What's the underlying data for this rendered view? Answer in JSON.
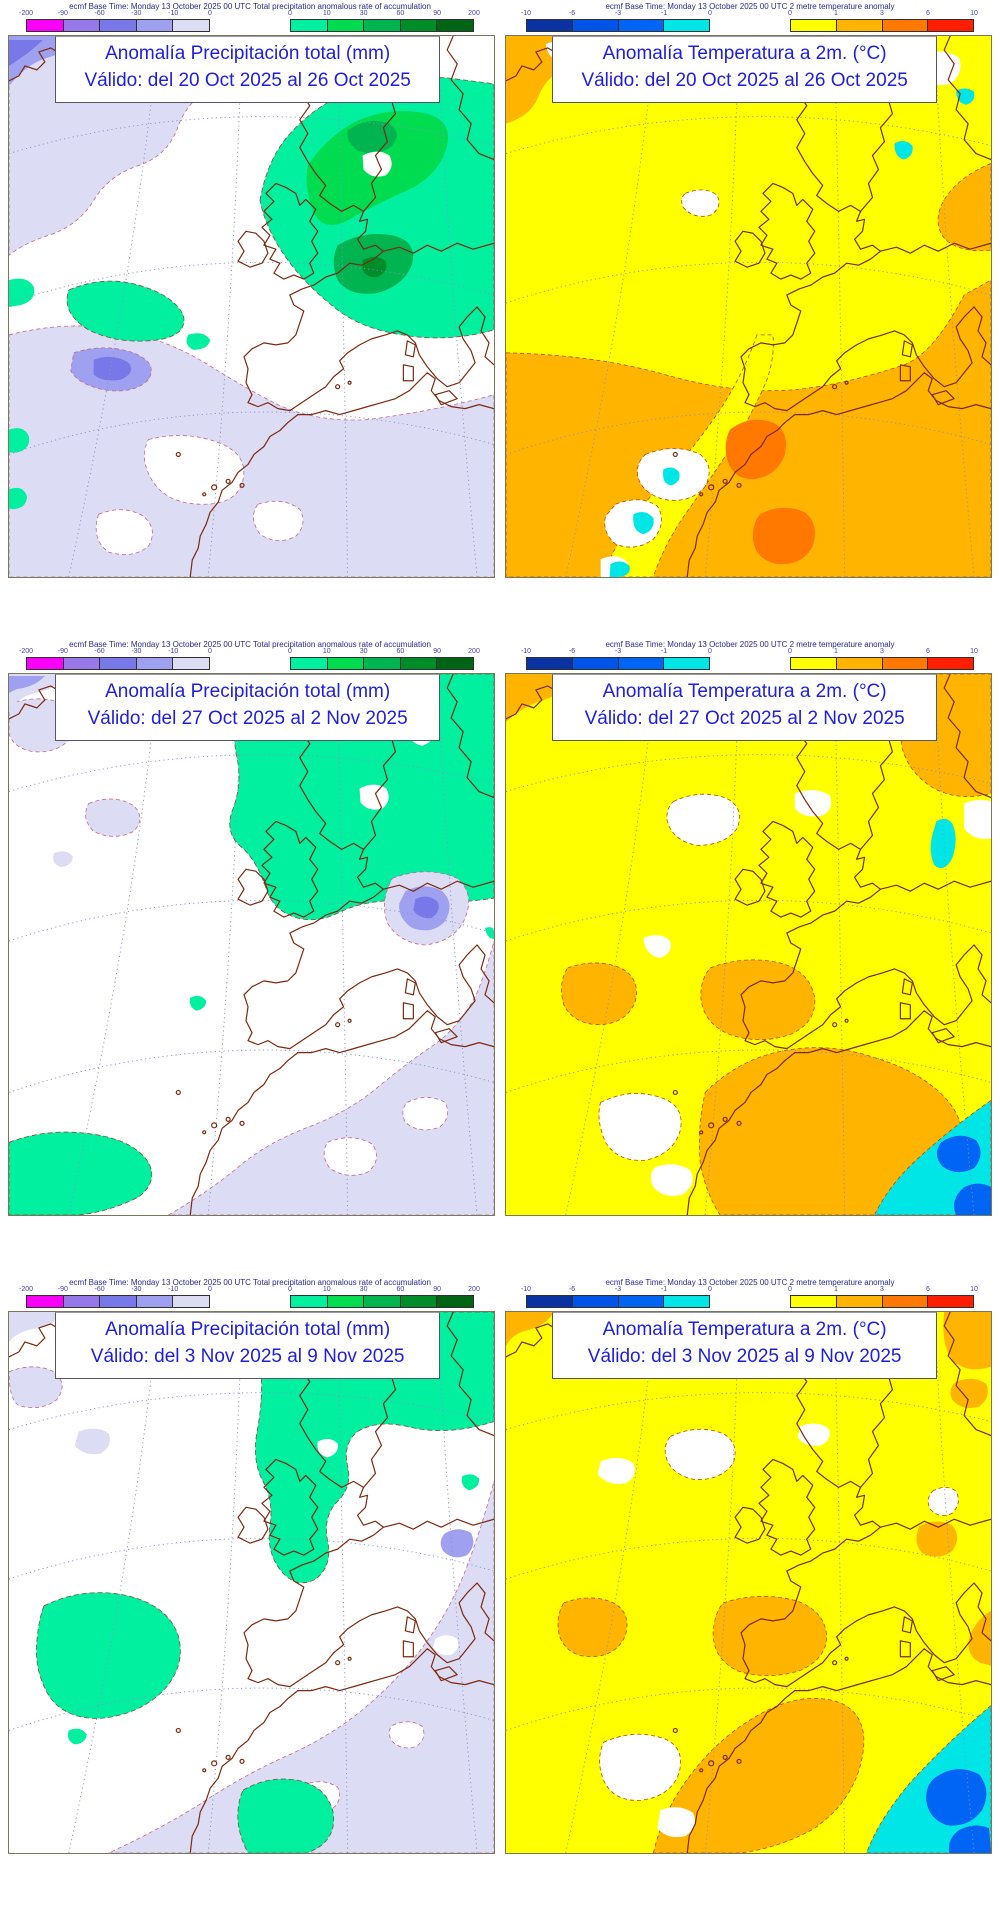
{
  "colors": {
    "magenta": "#FA00FA",
    "purple-mid": "#9678E8",
    "purple-blue": "#7878E8",
    "periwinkle": "#A0A0F0",
    "lavender": "#DCDCF4",
    "mint": "#00F0A0",
    "green-bright": "#00DC50",
    "green-mid": "#00B450",
    "green-deep": "#008C28",
    "green-dark": "#006414",
    "navy": "#0A32A0",
    "blue": "#0055E8",
    "blue2": "#0064F5",
    "cyan": "#00E6E6",
    "yellow": "#FFFF00",
    "orange-light": "#FFB400",
    "orange": "#FF7800",
    "red": "#FF1E00",
    "title-text": "#1E1EDC",
    "coast": "#7B2A10",
    "contour-precip": "#C06890",
    "contour-temp": "#B44814",
    "graticule": "#8890C8"
  },
  "legend": {
    "precip_caption": "ecmf  Base Time: Monday 13 October 2025 00 UTC Total precipitation anomalous rate of accumulation",
    "temp_caption": "ecmf  Base Time: Monday 13 October 2025 00 UTC 2 metre temperature anomaly",
    "bars": {
      "precip_neg": {
        "ticks": [
          "-200",
          "-90",
          "-60",
          "-30",
          "-10",
          "0"
        ],
        "colors": [
          "#FA00FA",
          "#9678E8",
          "#7878E8",
          "#A0A0F0",
          "#DCDCF4"
        ]
      },
      "precip_pos": {
        "ticks": [
          "0",
          "10",
          "30",
          "60",
          "90",
          "200"
        ],
        "colors": [
          "#00F0A0",
          "#00DC50",
          "#00B450",
          "#008C28",
          "#006414"
        ]
      },
      "temp_neg": {
        "ticks": [
          "-10",
          "-6",
          "-3",
          "-1",
          "0"
        ],
        "colors": [
          "#0A32A0",
          "#0055E8",
          "#0064F5",
          "#00E6E6"
        ]
      },
      "temp_pos": {
        "ticks": [
          "0",
          "1",
          "3",
          "6",
          "10"
        ],
        "colors": [
          "#FFFF00",
          "#FFB400",
          "#FF7800",
          "#FF1E00"
        ]
      }
    }
  },
  "panels": [
    {
      "title": "Anomalía Precipitación total (mm)",
      "valid": "Válido: del 20 Oct 2025 al 26 Oct 2025"
    },
    {
      "title": "Anomalía Temperatura a 2m. (°C)",
      "valid": "Válido: del 20 Oct 2025 al 26 Oct 2025"
    },
    {
      "title": "Anomalía Precipitación total (mm)",
      "valid": "Válido: del 27 Oct 2025 al 2 Nov 2025"
    },
    {
      "title": "Anomalía Temperatura a 2m. (°C)",
      "valid": "Válido: del 27 Oct 2025 al 2 Nov 2025"
    },
    {
      "title": "Anomalía Precipitación total (mm)",
      "valid": "Válido: del 3 Nov 2025 al 9 Nov 2025"
    },
    {
      "title": "Anomalía Temperatura a 2m. (°C)",
      "valid": "Válido: del 3 Nov 2025 al 9 Nov 2025"
    }
  ]
}
